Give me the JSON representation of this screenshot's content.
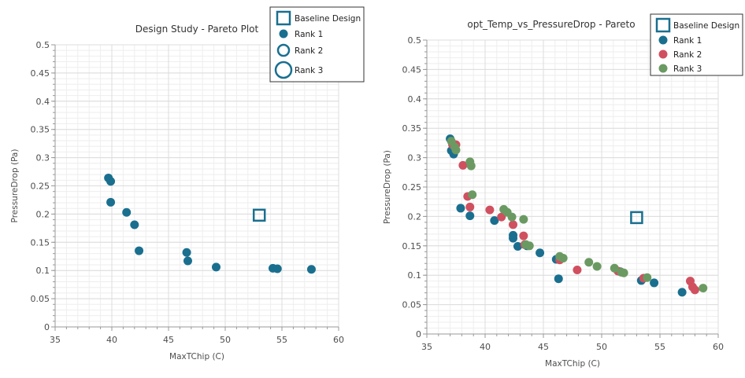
{
  "colors": {
    "rank1": "#1a6f8f",
    "rank2": "#d05060",
    "rank3": "#6a9a62",
    "axis": "#999999",
    "grid_major": "#dcdcdc",
    "grid_minor": "#eeeeee"
  },
  "chart_data": [
    {
      "type": "scatter",
      "title": "Design Study - Pareto Plot",
      "xlabel": "MaxTChip (C)",
      "ylabel": "PressureDrop (Pa)",
      "xlim": [
        35,
        60
      ],
      "ylim": [
        0,
        0.5
      ],
      "xticks": [
        "35",
        "40",
        "45",
        "50",
        "55",
        "60"
      ],
      "yticks": [
        "0",
        "0.05",
        "0.1",
        "0.15",
        "0.2",
        "0.25",
        "0.3",
        "0.35",
        "0.4",
        "0.45",
        "0.5"
      ],
      "legend_position": "top-right",
      "legend": [
        "Baseline Design",
        "Rank 1",
        "Rank 2",
        "Rank 3"
      ],
      "baseline": {
        "x": 53.0,
        "y": 0.198
      },
      "series": [
        {
          "name": "Rank 1",
          "points": [
            [
              39.7,
              0.264
            ],
            [
              39.9,
              0.258
            ],
            [
              39.9,
              0.221
            ],
            [
              41.3,
              0.203
            ],
            [
              42.0,
              0.181
            ],
            [
              42.4,
              0.135
            ],
            [
              46.6,
              0.132
            ],
            [
              46.7,
              0.117
            ],
            [
              49.2,
              0.106
            ],
            [
              54.2,
              0.104
            ],
            [
              54.6,
              0.103
            ],
            [
              57.6,
              0.102
            ]
          ]
        }
      ]
    },
    {
      "type": "scatter",
      "title": "opt_Temp_vs_PressureDrop - Pareto",
      "xlabel": "MaxTChip (C)",
      "ylabel": "PressureDrop (Pa)",
      "xlim": [
        35,
        60
      ],
      "ylim": [
        0,
        0.5
      ],
      "xticks": [
        "35",
        "40",
        "45",
        "50",
        "55",
        "60"
      ],
      "yticks": [
        "0",
        "0.05",
        "0.1",
        "0.15",
        "0.2",
        "0.25",
        "0.3",
        "0.35",
        "0.4",
        "0.45",
        "0.5"
      ],
      "legend_position": "top-right",
      "legend": [
        "Baseline Design",
        "Rank 1",
        "Rank 2",
        "Rank 3"
      ],
      "baseline": {
        "x": 53.0,
        "y": 0.198
      },
      "series": [
        {
          "name": "Rank 1",
          "points": [
            [
              37.0,
              0.332
            ],
            [
              37.1,
              0.312
            ],
            [
              37.3,
              0.306
            ],
            [
              37.9,
              0.214
            ],
            [
              38.7,
              0.201
            ],
            [
              40.8,
              0.193
            ],
            [
              42.4,
              0.168
            ],
            [
              42.4,
              0.163
            ],
            [
              42.8,
              0.149
            ],
            [
              43.6,
              0.15
            ],
            [
              44.7,
              0.138
            ],
            [
              46.1,
              0.127
            ],
            [
              46.3,
              0.094
            ],
            [
              51.6,
              0.106
            ],
            [
              53.4,
              0.091
            ],
            [
              54.5,
              0.087
            ],
            [
              56.9,
              0.071
            ]
          ]
        },
        {
          "name": "Rank 2",
          "points": [
            [
              37.2,
              0.322
            ],
            [
              37.5,
              0.322
            ],
            [
              38.1,
              0.287
            ],
            [
              38.5,
              0.234
            ],
            [
              38.7,
              0.216
            ],
            [
              40.4,
              0.211
            ],
            [
              41.4,
              0.199
            ],
            [
              42.4,
              0.186
            ],
            [
              43.3,
              0.167
            ],
            [
              43.4,
              0.152
            ],
            [
              46.4,
              0.126
            ],
            [
              47.9,
              0.109
            ],
            [
              51.4,
              0.107
            ],
            [
              53.6,
              0.095
            ],
            [
              57.6,
              0.09
            ],
            [
              57.8,
              0.08
            ],
            [
              58.0,
              0.075
            ]
          ]
        },
        {
          "name": "Rank 3",
          "points": [
            [
              37.1,
              0.328
            ],
            [
              37.4,
              0.318
            ],
            [
              37.5,
              0.313
            ],
            [
              38.7,
              0.293
            ],
            [
              38.8,
              0.286
            ],
            [
              38.9,
              0.237
            ],
            [
              41.6,
              0.212
            ],
            [
              41.9,
              0.207
            ],
            [
              42.3,
              0.199
            ],
            [
              43.3,
              0.195
            ],
            [
              43.5,
              0.152
            ],
            [
              43.8,
              0.15
            ],
            [
              46.4,
              0.132
            ],
            [
              46.7,
              0.129
            ],
            [
              48.9,
              0.122
            ],
            [
              49.6,
              0.115
            ],
            [
              51.1,
              0.112
            ],
            [
              51.7,
              0.105
            ],
            [
              51.9,
              0.104
            ],
            [
              53.9,
              0.096
            ],
            [
              58.7,
              0.078
            ]
          ]
        }
      ]
    }
  ]
}
